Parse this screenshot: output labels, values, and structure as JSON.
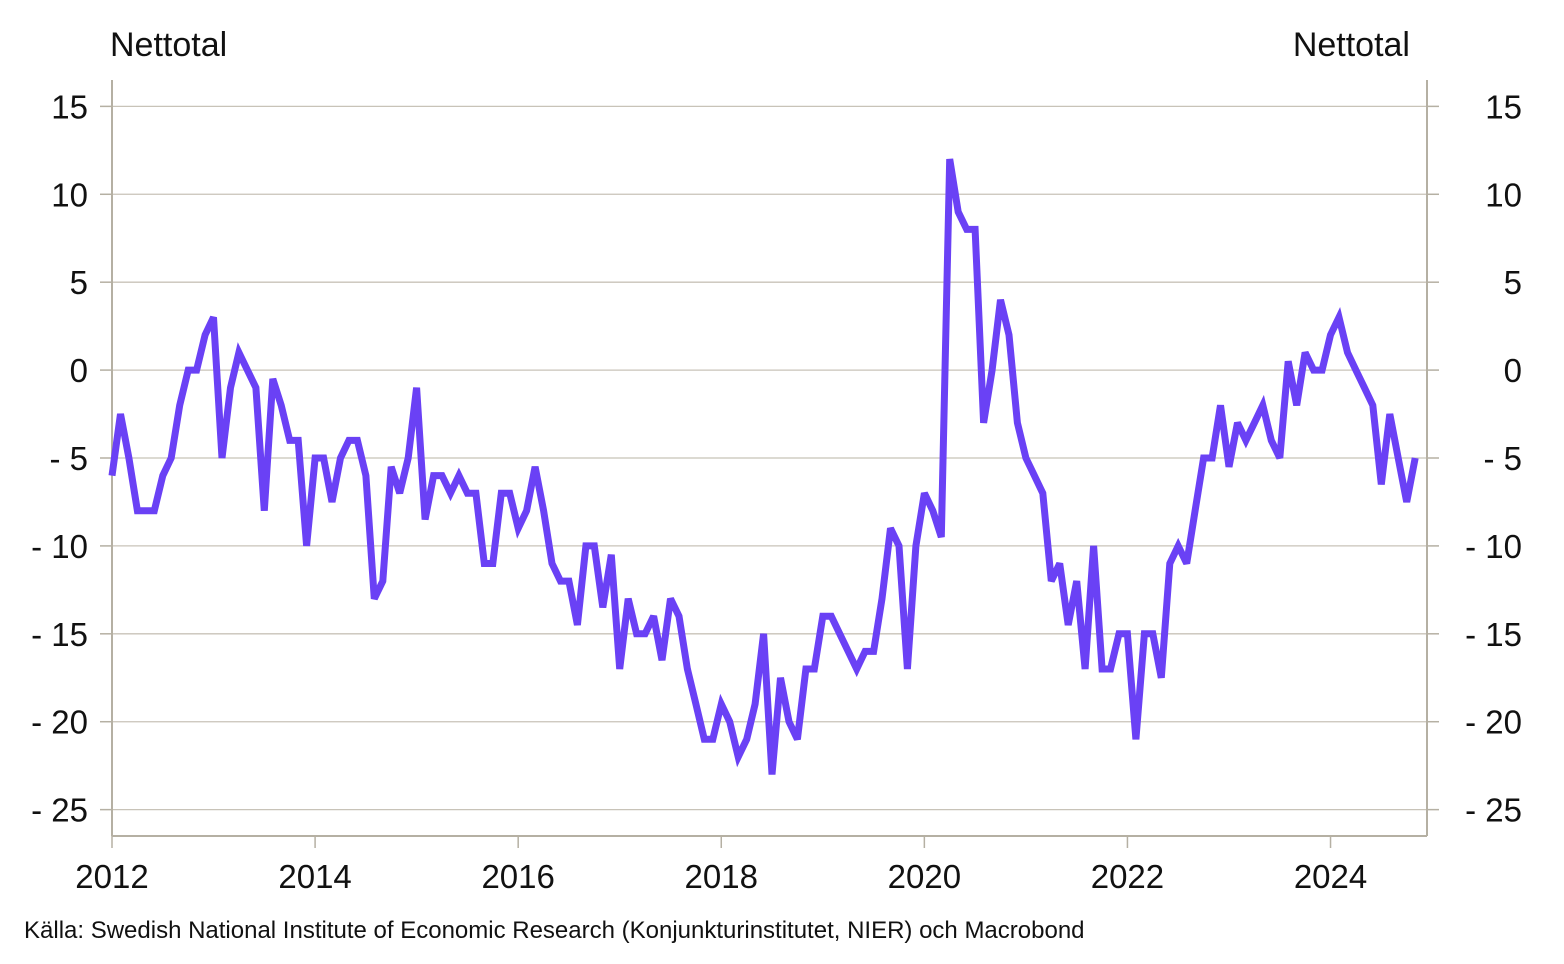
{
  "chart_data": {
    "type": "line",
    "ylabel_left": "Nettotal",
    "ylabel_right": "Nettotal",
    "source": "Källa: Swedish National Institute of Economic Research (Konjunkturinstitutet, NIER) och Macrobond",
    "ylim": [
      -26.5,
      16.5
    ],
    "yticks": [
      15,
      10,
      5,
      0,
      -5,
      -10,
      -15,
      -20,
      -25
    ],
    "ytick_labels": [
      "15",
      "10",
      "5",
      "0",
      "- 5",
      "- 10",
      "- 15",
      "- 20",
      "- 25"
    ],
    "xlim": [
      2012.0,
      2024.95
    ],
    "xticks": [
      2012,
      2014,
      2016,
      2018,
      2020,
      2022,
      2024
    ],
    "xtick_labels": [
      "2012",
      "2014",
      "2016",
      "2018",
      "2020",
      "2022",
      "2024"
    ],
    "grid": true,
    "colors": {
      "line": "#6a41f5",
      "grid": "#c8c3b8",
      "axis": "#b5b0a3"
    },
    "series": [
      {
        "x_start": 2012.0,
        "frequency": "monthly",
        "values": [
          -6,
          -2.5,
          -5,
          -8,
          -8,
          -8,
          -6,
          -5,
          -2,
          0,
          0,
          2,
          3,
          -5,
          -1,
          1,
          0,
          -1,
          -8,
          -0.5,
          -2,
          -4,
          -4,
          -10,
          -5,
          -5,
          -7.5,
          -5,
          -4,
          -4,
          -6,
          -13,
          -12,
          -5.5,
          -7,
          -5,
          -1,
          -8.5,
          -6,
          -6,
          -7,
          -6,
          -7,
          -7,
          -11,
          -11,
          -7,
          -7,
          -9,
          -8,
          -5.5,
          -8,
          -11,
          -12,
          -12,
          -14.5,
          -10,
          -10,
          -13.5,
          -10.5,
          -17,
          -13,
          -15,
          -15,
          -14,
          -16.5,
          -13,
          -14,
          -17,
          -19,
          -21,
          -21,
          -19,
          -20,
          -22,
          -21,
          -19,
          -15,
          -23,
          -17.5,
          -20,
          -21,
          -17,
          -17,
          -14,
          -14,
          -15,
          -16,
          -17,
          -16,
          -16,
          -13,
          -9,
          -10,
          -17,
          -10,
          -7,
          -8,
          -9.5,
          12,
          9,
          8,
          8,
          -3,
          0,
          4,
          2,
          -3,
          -5,
          -6,
          -7,
          -12,
          -11,
          -14.5,
          -12,
          -17,
          -10,
          -17,
          -17,
          -15,
          -15,
          -21,
          -15,
          -15,
          -17.5,
          -11,
          -10,
          -11,
          -8,
          -5,
          -5,
          -2,
          -5.5,
          -3,
          -4,
          -3,
          -2,
          -4,
          -5,
          0.5,
          -2,
          1,
          0,
          0,
          2,
          3,
          1,
          0,
          -1,
          -2,
          -6.5,
          -2.5,
          -5,
          -7.5,
          -5
        ]
      }
    ]
  }
}
